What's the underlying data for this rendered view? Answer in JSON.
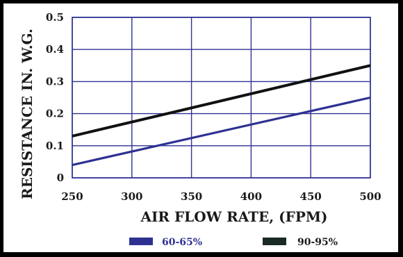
{
  "chart_data": {
    "type": "line",
    "xlabel": "AIR FLOW RATE, (FPM)",
    "ylabel": "RESISTANCE IN. W.G.",
    "xlim": [
      250,
      500
    ],
    "ylim": [
      0,
      0.5
    ],
    "x_ticks": [
      250,
      300,
      350,
      400,
      450,
      500
    ],
    "y_ticks": [
      0,
      0.1,
      0.2,
      0.3,
      0.4,
      0.5
    ],
    "x_tick_labels": [
      "250",
      "300",
      "350",
      "400",
      "450",
      "500"
    ],
    "y_tick_labels": [
      "0",
      "0.1",
      "0.2",
      "0.3",
      "0.4",
      "0.5"
    ],
    "grid": true,
    "legend_position": "bottom",
    "series": [
      {
        "name": "60-65%",
        "color": "#2e3192",
        "x": [
          250,
          500
        ],
        "y": [
          0.04,
          0.25
        ]
      },
      {
        "name": "90-95%",
        "color": "#111111",
        "x": [
          250,
          500
        ],
        "y": [
          0.13,
          0.35
        ]
      }
    ],
    "colors": {
      "grid": "#2e3192",
      "text": "#1a1a1a",
      "legend_text_0": "#2e3192",
      "legend_text_1": "#1a1a1a"
    }
  }
}
